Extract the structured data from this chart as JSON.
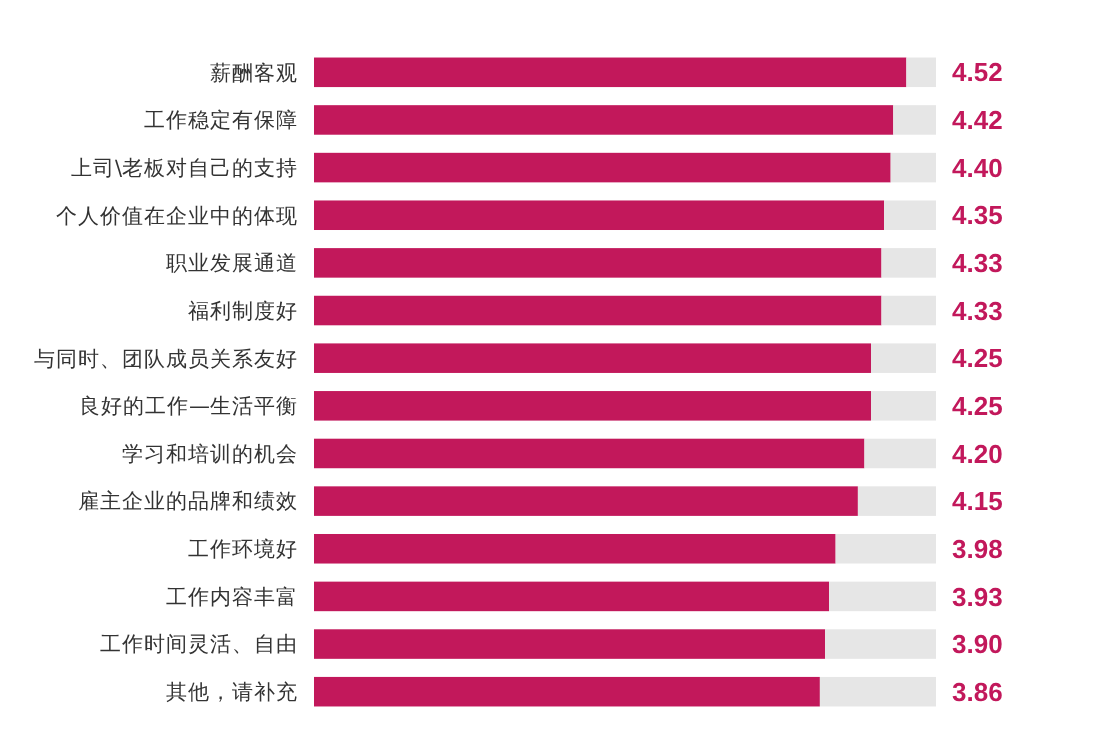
{
  "chart_data": {
    "type": "bar",
    "orientation": "horizontal",
    "categories": [
      "薪酬客观",
      "工作稳定有保障",
      "上司\\老板对自己的支持",
      "个人价值在企业中的体现",
      "职业发展通道",
      "福利制度好",
      "与同时、团队成员关系友好",
      "良好的工作—生活平衡",
      "学习和培训的机会",
      "雇主企业的品牌和绩效",
      "工作环境好",
      "工作内容丰富",
      "工作时间灵活、自由",
      "其他，请补充"
    ],
    "values": [
      4.52,
      4.42,
      4.4,
      4.35,
      4.33,
      4.33,
      4.25,
      4.25,
      4.2,
      4.15,
      3.98,
      3.93,
      3.9,
      3.86
    ],
    "value_labels": [
      "4.52",
      "4.42",
      "4.40",
      "4.35",
      "4.33",
      "4.33",
      "4.25",
      "4.25",
      "4.20",
      "4.15",
      "3.98",
      "3.93",
      "3.90",
      "3.86"
    ],
    "color": "#c2185b"
  }
}
